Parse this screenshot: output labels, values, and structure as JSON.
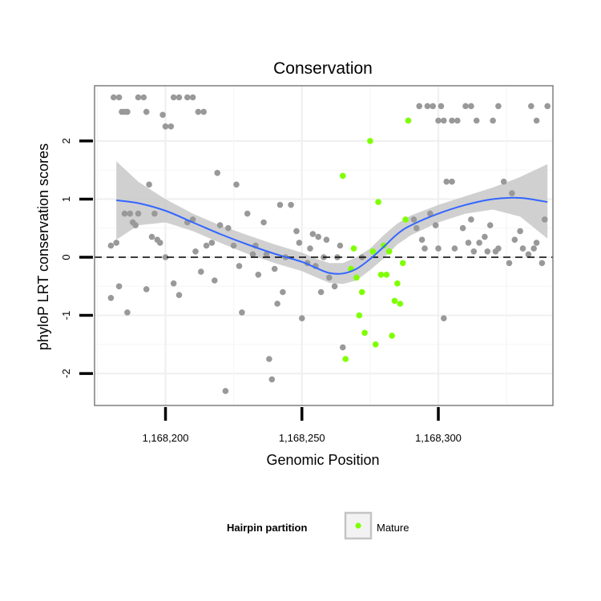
{
  "chart_data": {
    "type": "scatter",
    "title": "Conservation",
    "xlabel": "Genomic Position",
    "ylabel": "phyloP LRT conservation scores",
    "xlim": [
      1168174,
      1168342
    ],
    "ylim": [
      -2.55,
      2.95
    ],
    "x_ticks": [
      1168200,
      1168250,
      1168300
    ],
    "x_tick_labels": [
      "1,168,200",
      "1,168,250",
      "1,168,300"
    ],
    "y_ticks": [
      -2,
      -1,
      0,
      1,
      2
    ],
    "y_tick_labels": [
      "-2",
      "-1",
      "0",
      "1",
      "2"
    ],
    "reference_line": {
      "y": 0,
      "style": "dashed",
      "color": "#000000"
    },
    "grid": true,
    "legend": {
      "title": "Hairpin partition",
      "placement": "bottom",
      "entries": [
        {
          "label": "Mature",
          "color": "#7fff00"
        }
      ]
    },
    "colors": {
      "other": "#999999",
      "mature": "#7fff00",
      "smooth": "#3366ff",
      "ribbon": "#c8c8c8"
    },
    "series": [
      {
        "name": "",
        "color": "#999999",
        "points": [
          [
            1168181,
            2.75
          ],
          [
            1168183,
            2.75
          ],
          [
            1168184,
            2.5
          ],
          [
            1168185,
            2.5
          ],
          [
            1168186,
            2.5
          ],
          [
            1168190,
            2.75
          ],
          [
            1168192,
            2.75
          ],
          [
            1168193,
            2.5
          ],
          [
            1168199,
            2.45
          ],
          [
            1168200,
            2.25
          ],
          [
            1168202,
            2.25
          ],
          [
            1168203,
            2.75
          ],
          [
            1168205,
            2.75
          ],
          [
            1168208,
            2.75
          ],
          [
            1168210,
            2.75
          ],
          [
            1168212,
            2.5
          ],
          [
            1168214,
            2.5
          ],
          [
            1168180,
            0.2
          ],
          [
            1168182,
            0.25
          ],
          [
            1168185,
            0.75
          ],
          [
            1168187,
            0.75
          ],
          [
            1168188,
            0.6
          ],
          [
            1168189,
            0.55
          ],
          [
            1168190,
            0.75
          ],
          [
            1168194,
            1.25
          ],
          [
            1168196,
            0.75
          ],
          [
            1168180,
            -0.7
          ],
          [
            1168183,
            -0.5
          ],
          [
            1168186,
            -0.95
          ],
          [
            1168193,
            -0.55
          ],
          [
            1168195,
            0.35
          ],
          [
            1168197,
            0.3
          ],
          [
            1168198,
            0.25
          ],
          [
            1168200,
            0.0
          ],
          [
            1168203,
            -0.45
          ],
          [
            1168205,
            -0.65
          ],
          [
            1168208,
            0.6
          ],
          [
            1168210,
            0.65
          ],
          [
            1168211,
            0.1
          ],
          [
            1168213,
            -0.25
          ],
          [
            1168215,
            0.2
          ],
          [
            1168217,
            0.25
          ],
          [
            1168218,
            -0.4
          ],
          [
            1168219,
            1.45
          ],
          [
            1168220,
            0.55
          ],
          [
            1168222,
            -2.3
          ],
          [
            1168223,
            0.5
          ],
          [
            1168225,
            0.2
          ],
          [
            1168226,
            1.25
          ],
          [
            1168227,
            -0.15
          ],
          [
            1168228,
            -0.95
          ],
          [
            1168230,
            0.75
          ],
          [
            1168232,
            0.05
          ],
          [
            1168233,
            0.2
          ],
          [
            1168234,
            -0.3
          ],
          [
            1168236,
            0.6
          ],
          [
            1168237,
            0.05
          ],
          [
            1168238,
            -1.75
          ],
          [
            1168239,
            -2.1
          ],
          [
            1168240,
            -0.2
          ],
          [
            1168241,
            -0.8
          ],
          [
            1168242,
            0.9
          ],
          [
            1168243,
            -0.6
          ],
          [
            1168244,
            0.0
          ],
          [
            1168246,
            0.9
          ],
          [
            1168248,
            0.45
          ],
          [
            1168249,
            0.25
          ],
          [
            1168250,
            -1.05
          ],
          [
            1168252,
            -0.1
          ],
          [
            1168253,
            0.15
          ],
          [
            1168254,
            0.4
          ],
          [
            1168255,
            -0.15
          ],
          [
            1168256,
            0.35
          ],
          [
            1168257,
            -0.6
          ],
          [
            1168258,
            0.0
          ],
          [
            1168259,
            0.3
          ],
          [
            1168260,
            -0.35
          ],
          [
            1168262,
            -0.5
          ],
          [
            1168263,
            0.0
          ],
          [
            1168264,
            0.2
          ],
          [
            1168265,
            -1.55
          ],
          [
            1168272,
            0.0
          ],
          [
            1168289,
            2.35
          ],
          [
            1168293,
            2.6
          ],
          [
            1168296,
            2.6
          ],
          [
            1168298,
            2.6
          ],
          [
            1168300,
            2.35
          ],
          [
            1168301,
            2.6
          ],
          [
            1168302,
            2.35
          ],
          [
            1168305,
            2.35
          ],
          [
            1168307,
            2.35
          ],
          [
            1168310,
            2.6
          ],
          [
            1168312,
            2.6
          ],
          [
            1168314,
            2.35
          ],
          [
            1168320,
            2.35
          ],
          [
            1168322,
            2.6
          ],
          [
            1168334,
            2.6
          ],
          [
            1168336,
            2.35
          ],
          [
            1168340,
            2.6
          ],
          [
            1168291,
            0.65
          ],
          [
            1168292,
            0.5
          ],
          [
            1168294,
            0.3
          ],
          [
            1168295,
            0.15
          ],
          [
            1168297,
            0.75
          ],
          [
            1168299,
            0.55
          ],
          [
            1168300,
            0.15
          ],
          [
            1168302,
            -1.05
          ],
          [
            1168303,
            1.3
          ],
          [
            1168305,
            1.3
          ],
          [
            1168306,
            0.15
          ],
          [
            1168309,
            0.5
          ],
          [
            1168311,
            0.25
          ],
          [
            1168312,
            0.65
          ],
          [
            1168313,
            0.1
          ],
          [
            1168315,
            0.25
          ],
          [
            1168317,
            0.35
          ],
          [
            1168318,
            0.1
          ],
          [
            1168319,
            0.55
          ],
          [
            1168321,
            0.1
          ],
          [
            1168322,
            0.15
          ],
          [
            1168324,
            1.3
          ],
          [
            1168326,
            -0.1
          ],
          [
            1168327,
            1.1
          ],
          [
            1168328,
            0.3
          ],
          [
            1168330,
            0.45
          ],
          [
            1168331,
            0.15
          ],
          [
            1168333,
            0.05
          ],
          [
            1168335,
            0.15
          ],
          [
            1168336,
            0.25
          ],
          [
            1168338,
            -0.1
          ],
          [
            1168339,
            0.65
          ]
        ]
      },
      {
        "name": "Mature",
        "color": "#7fff00",
        "points": [
          [
            1168265,
            1.4
          ],
          [
            1168266,
            -1.75
          ],
          [
            1168268,
            -0.2
          ],
          [
            1168269,
            0.15
          ],
          [
            1168270,
            -0.35
          ],
          [
            1168271,
            -1.0
          ],
          [
            1168272,
            -0.6
          ],
          [
            1168273,
            -1.3
          ],
          [
            1168275,
            2.0
          ],
          [
            1168276,
            0.1
          ],
          [
            1168277,
            -1.5
          ],
          [
            1168278,
            0.95
          ],
          [
            1168279,
            -0.3
          ],
          [
            1168280,
            0.2
          ],
          [
            1168281,
            -0.3
          ],
          [
            1168282,
            0.1
          ],
          [
            1168283,
            -1.35
          ],
          [
            1168284,
            -0.75
          ],
          [
            1168285,
            -0.45
          ],
          [
            1168286,
            -0.8
          ],
          [
            1168287,
            -0.1
          ],
          [
            1168288,
            0.65
          ],
          [
            1168289,
            2.35
          ]
        ]
      }
    ],
    "smooth_line": [
      [
        1168182,
        0.98
      ],
      [
        1168190,
        0.93
      ],
      [
        1168200,
        0.8
      ],
      [
        1168210,
        0.6
      ],
      [
        1168220,
        0.4
      ],
      [
        1168230,
        0.22
      ],
      [
        1168240,
        0.06
      ],
      [
        1168250,
        -0.08
      ],
      [
        1168255,
        -0.18
      ],
      [
        1168260,
        -0.27
      ],
      [
        1168265,
        -0.28
      ],
      [
        1168270,
        -0.2
      ],
      [
        1168275,
        -0.03
      ],
      [
        1168280,
        0.18
      ],
      [
        1168285,
        0.4
      ],
      [
        1168290,
        0.55
      ],
      [
        1168300,
        0.75
      ],
      [
        1168310,
        0.9
      ],
      [
        1168320,
        1.0
      ],
      [
        1168330,
        1.02
      ],
      [
        1168340,
        0.95
      ]
    ],
    "confidence_band": {
      "upper": [
        [
          1168182,
          1.65
        ],
        [
          1168190,
          1.3
        ],
        [
          1168200,
          1.0
        ],
        [
          1168210,
          0.75
        ],
        [
          1168220,
          0.55
        ],
        [
          1168230,
          0.38
        ],
        [
          1168240,
          0.22
        ],
        [
          1168250,
          0.08
        ],
        [
          1168255,
          -0.02
        ],
        [
          1168260,
          -0.1
        ],
        [
          1168265,
          -0.1
        ],
        [
          1168270,
          0.0
        ],
        [
          1168275,
          0.15
        ],
        [
          1168280,
          0.38
        ],
        [
          1168285,
          0.58
        ],
        [
          1168290,
          0.72
        ],
        [
          1168300,
          0.9
        ],
        [
          1168310,
          1.05
        ],
        [
          1168320,
          1.2
        ],
        [
          1168330,
          1.38
        ],
        [
          1168340,
          1.6
        ]
      ],
      "lower": [
        [
          1168182,
          0.3
        ],
        [
          1168190,
          0.55
        ],
        [
          1168200,
          0.6
        ],
        [
          1168210,
          0.45
        ],
        [
          1168220,
          0.25
        ],
        [
          1168230,
          0.06
        ],
        [
          1168240,
          -0.1
        ],
        [
          1168250,
          -0.24
        ],
        [
          1168255,
          -0.34
        ],
        [
          1168260,
          -0.44
        ],
        [
          1168265,
          -0.46
        ],
        [
          1168270,
          -0.4
        ],
        [
          1168275,
          -0.22
        ],
        [
          1168280,
          -0.02
        ],
        [
          1168285,
          0.22
        ],
        [
          1168290,
          0.38
        ],
        [
          1168300,
          0.6
        ],
        [
          1168310,
          0.75
        ],
        [
          1168320,
          0.82
        ],
        [
          1168330,
          0.7
        ],
        [
          1168340,
          0.32
        ]
      ]
    }
  }
}
